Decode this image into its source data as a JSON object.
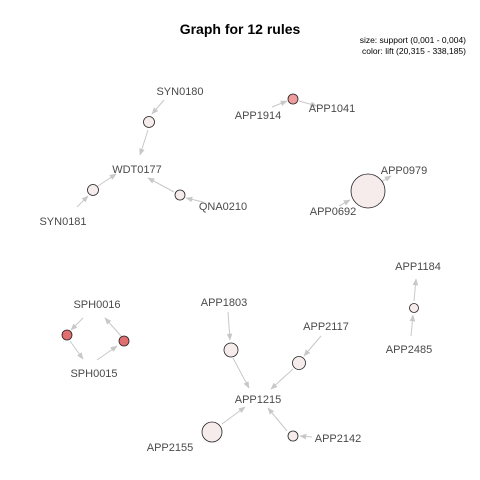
{
  "title": "Graph for 12 rules",
  "legend": {
    "size": "size: support (0,001 - 0,004)",
    "color": "color: lift (20,315 - 338,185)"
  },
  "labels": {
    "syn0180": "SYN0180",
    "wdt0177": "WDT0177",
    "syn0181": "SYN0181",
    "qna0210": "QNA0210",
    "app1914": "APP1914",
    "app1041": "APP1041",
    "app0979": "APP0979",
    "app0692": "APP0692",
    "app1184": "APP1184",
    "app2485": "APP2485",
    "sph0016": "SPH0016",
    "sph0015": "SPH0015",
    "app1803": "APP1803",
    "app2117": "APP2117",
    "app1215": "APP1215",
    "app2155": "APP2155",
    "app2142": "APP2142"
  },
  "colors": {
    "edge": "#c8c8c8",
    "node_light": "#f7ecec",
    "node_mid": "#f3d3d3",
    "node_pink": "#ee9c9c",
    "node_red": "#e26f6f"
  }
}
